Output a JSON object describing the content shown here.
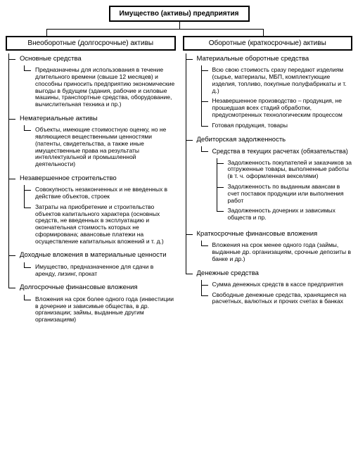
{
  "root": "Имущество (активы) предприятия",
  "cols": [
    {
      "title": "Внеоборотные (долгосрочные) активы",
      "nodes": [
        {
          "label": "Основные средства",
          "children": [
            "Предназначены для использования в течение длительного времени (свыше 12 месяцев) и способны приносить предприятию экономические выгоды в будущем (здания, рабочие и силовые машины, транспортные средства, оборудование, вычислительная техника и пр.)"
          ]
        },
        {
          "label": "Нематериальные активы",
          "children": [
            "Объекты, имеющие стоимостную оценку, но не являющиеся вещественными ценностями (патенты, свидетельства, а также иные имущественные права на результаты интеллектуальной и промышленной деятельности)"
          ]
        },
        {
          "label": "Незавершенное строительство",
          "children": [
            "Совокупность незаконченных и не введенных в действие объектов, строек",
            "Затраты на приобретение и строительство объектов капитального характера (основных средств, не введенных в эксплуатацию и окончательная стоимость которых не сформирована; авансовые платежи на осуществление капитальных вложений и т. д.)"
          ]
        },
        {
          "label": "Доходные вложения в материальные ценности",
          "children": [
            "Имущество, предназначенное для сдачи в аренду, лизинг, прокат"
          ]
        },
        {
          "label": "Долгосрочные финансовые вложения",
          "children": [
            "Вложения на срок более одного года (инвестиции в дочерние и зависимые общества, в др. организации; займы, выданные другим организациям)"
          ]
        }
      ]
    },
    {
      "title": "Оборотные (краткосрочные) активы",
      "nodes": [
        {
          "label": "Материальные оборотные средства",
          "children": [
            "Всю свою стоимость сразу передают изделиям (сырье, материалы, МБП, комплектующие изделия, топливо, покупные полуфабрикаты и т. д.)",
            "Незавершенное производство – продукция, не прошедшая всех стадий обработки, предусмотренных технологическим процессом",
            "Готовая продукция, товары"
          ]
        },
        {
          "label": "Дебиторская задолженность",
          "children": [
            {
              "label": "Средства в текущих расчетах (обязательства)",
              "children": [
                "Задолженность покупателей и заказчиков за отгруженные товары, выполненные работы (в т. ч. оформленная векселями)",
                "Задолженность по выданным авансам в счет поставок продукции или выполнения работ",
                "Задолженность дочерних и зависимых обществ и пр."
              ]
            }
          ]
        },
        {
          "label": "Краткосрочные финансовые вложения",
          "children": [
            "Вложения на срок менее одного года (займы, выданные др. организациям, срочные депозиты в банке и др.)"
          ]
        },
        {
          "label": "Денежные средства",
          "children": [
            "Сумма денежных средств в кассе предприятия",
            "Свободные денежные средства, хранящиеся на расчетных, валютных и прочих счетах в банках"
          ]
        }
      ]
    }
  ]
}
